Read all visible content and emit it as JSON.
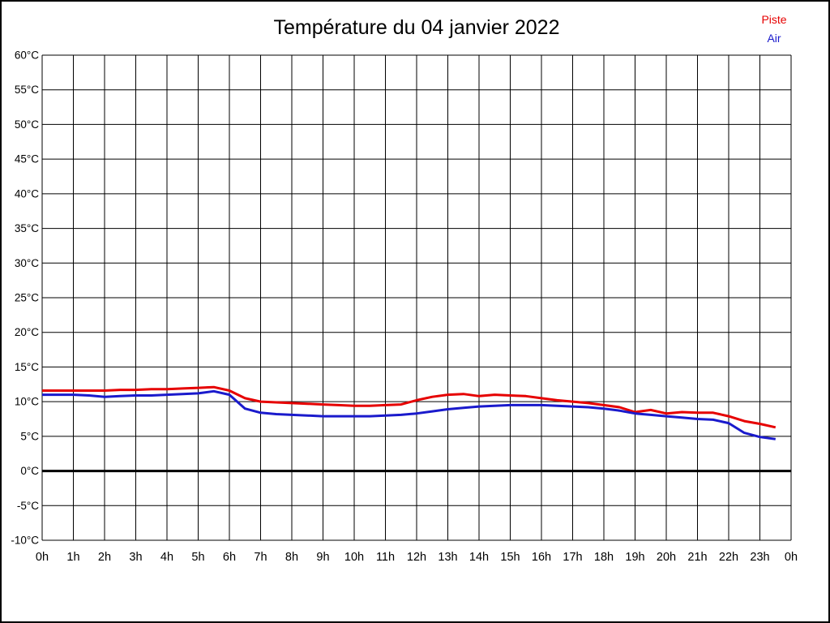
{
  "chart_data": {
    "type": "line",
    "title": "Température du 04 janvier 2022",
    "xlabel": "",
    "ylabel": "",
    "y_unit": "°C",
    "ylim": [
      -10,
      60
    ],
    "y_tick_step": 5,
    "xlim_hours": [
      0,
      24
    ],
    "x_tick_labels": [
      "0h",
      "1h",
      "2h",
      "3h",
      "4h",
      "5h",
      "6h",
      "7h",
      "8h",
      "9h",
      "10h",
      "11h",
      "12h",
      "13h",
      "14h",
      "15h",
      "16h",
      "17h",
      "18h",
      "19h",
      "20h",
      "21h",
      "22h",
      "23h",
      "0h"
    ],
    "grid": "on-black-both-axes",
    "zero_line_bold": true,
    "legend_position": "top-right",
    "legend": [
      {
        "label": "Piste",
        "color": "#e60000"
      },
      {
        "label": "Air",
        "color": "#1a1acc"
      }
    ],
    "x_start_hour": 0,
    "x_step_hours": 0.5,
    "series": [
      {
        "name": "Piste",
        "color": "#e60000",
        "values": [
          11.6,
          11.6,
          11.6,
          11.6,
          11.6,
          11.7,
          11.7,
          11.8,
          11.8,
          11.9,
          12.0,
          12.1,
          11.6,
          10.5,
          10.0,
          9.9,
          9.8,
          9.7,
          9.6,
          9.5,
          9.4,
          9.4,
          9.5,
          9.6,
          10.2,
          10.7,
          11.0,
          11.1,
          10.8,
          11.0,
          10.9,
          10.8,
          10.5,
          10.2,
          10.0,
          9.8,
          9.5,
          9.2,
          8.5,
          8.8,
          8.3,
          8.5,
          8.4,
          8.4,
          7.9,
          7.2,
          6.8,
          6.3
        ]
      },
      {
        "name": "Air",
        "color": "#1a1acc",
        "values": [
          11.0,
          11.0,
          11.0,
          10.9,
          10.7,
          10.8,
          10.9,
          10.9,
          11.0,
          11.1,
          11.2,
          11.5,
          11.0,
          9.0,
          8.4,
          8.2,
          8.1,
          8.0,
          7.9,
          7.9,
          7.9,
          7.9,
          8.0,
          8.1,
          8.3,
          8.6,
          8.9,
          9.1,
          9.3,
          9.4,
          9.5,
          9.5,
          9.5,
          9.4,
          9.3,
          9.2,
          9.0,
          8.7,
          8.3,
          8.1,
          7.9,
          7.7,
          7.5,
          7.4,
          6.9,
          5.5,
          4.9,
          4.6
        ]
      }
    ]
  }
}
